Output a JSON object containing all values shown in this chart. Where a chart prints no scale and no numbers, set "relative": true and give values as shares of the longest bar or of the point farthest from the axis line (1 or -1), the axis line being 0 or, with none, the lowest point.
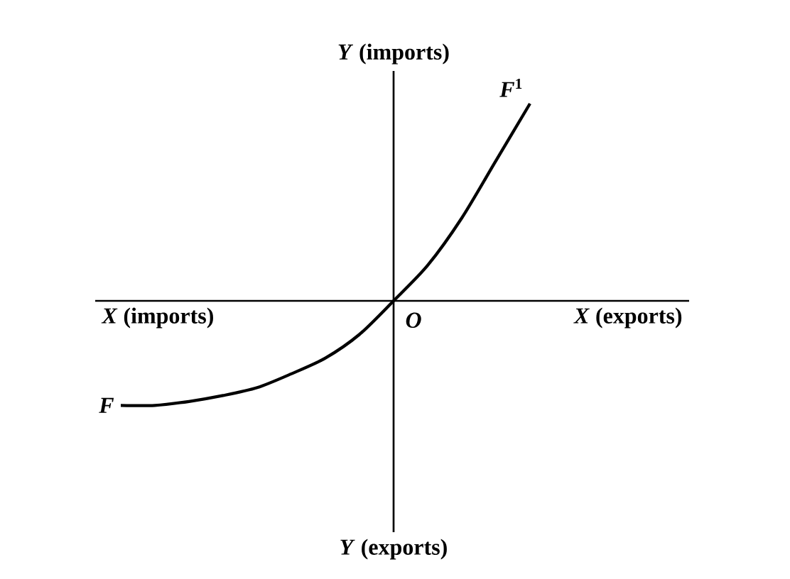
{
  "chart_data": {
    "type": "line",
    "relative": true,
    "categories": [
      null,
      null,
      null,
      null,
      null,
      null,
      null,
      null,
      null,
      null,
      null,
      null,
      null
    ],
    "series": [
      {
        "color": "#000000",
        "values": [
          -0.53,
          -0.53,
          -0.51,
          -0.48,
          -0.44,
          -0.37,
          -0.29,
          -0.17,
          0,
          0.18,
          0.42,
          0.71,
          1.0
        ]
      }
    ],
    "xlabel": "*X* (exports)",
    "ylabel": "*Y* (imports)",
    "annotations": [
      "*X* (imports)",
      "*Y* (exports)",
      "*O*",
      "*F*",
      "*F*$^{1}$"
    ],
    "marker": "none",
    "line_style": "solid"
  }
}
